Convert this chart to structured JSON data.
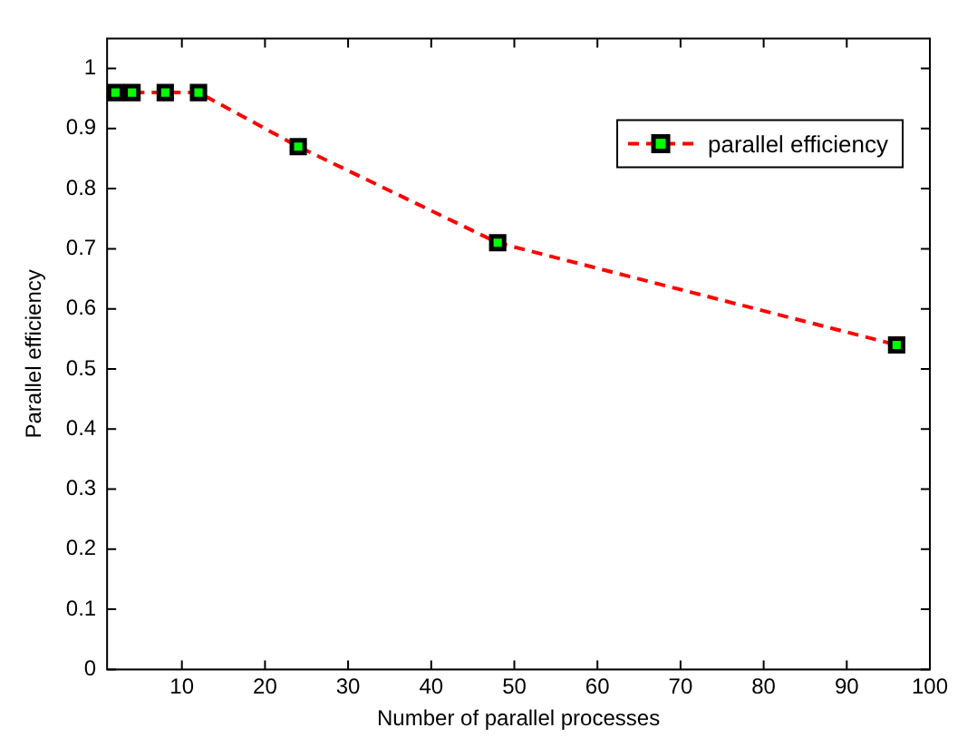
{
  "chart_data": {
    "type": "line",
    "xlabel": "Number of parallel processes",
    "ylabel": "Parallel efficiency",
    "x": [
      2,
      4,
      8,
      12,
      24,
      48,
      96
    ],
    "series": [
      {
        "name": "parallel efficiency",
        "color": "#ff0000",
        "values": [
          0.96,
          0.96,
          0.96,
          0.96,
          0.87,
          0.71,
          0.54
        ]
      }
    ],
    "xlim": [
      1,
      100
    ],
    "xticks": [
      10,
      20,
      30,
      40,
      50,
      60,
      70,
      80,
      90,
      100
    ],
    "ylim": [
      0,
      1.05
    ],
    "yticks": [
      0,
      0.1,
      0.2,
      0.3,
      0.4,
      0.5,
      0.6,
      0.7,
      0.8,
      0.9,
      1
    ],
    "grid": false,
    "legend": "top right",
    "marker": "square",
    "line_style": "dashed"
  }
}
